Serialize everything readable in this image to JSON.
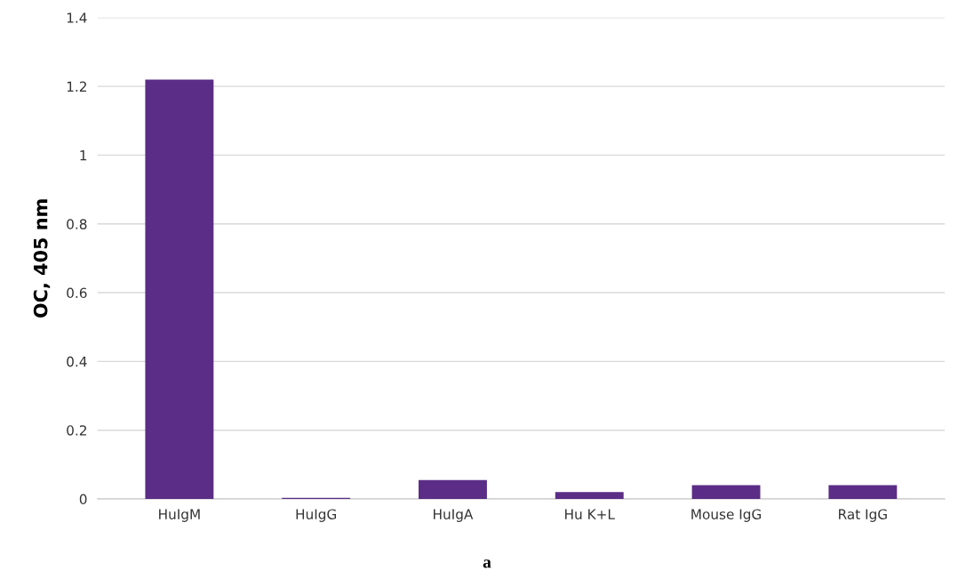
{
  "chart_data": {
    "type": "bar",
    "categories": [
      "HuIgM",
      "HuIgG",
      "HuIgA",
      "Hu K+L",
      "Mouse IgG",
      "Rat IgG"
    ],
    "values": [
      1.22,
      0.003,
      0.055,
      0.02,
      0.04,
      0.04
    ],
    "color": "#5b2d86",
    "ylabel": "OC, 405 nm",
    "ylim": [
      0,
      1.4
    ],
    "yticks": [
      0,
      {
        "value": 0.2,
        "label": "0.2"
      },
      {
        "value": 0.4,
        "label": "0.4"
      },
      {
        "value": 0.6,
        "label": "0.6"
      },
      {
        "value": 0.8,
        "label": "0.8"
      },
      1,
      {
        "value": 1.2,
        "label": "1.2"
      },
      {
        "value": 1.4,
        "label": "1.4"
      }
    ],
    "grid": "y",
    "legend": false,
    "annotations": [
      "a"
    ]
  }
}
